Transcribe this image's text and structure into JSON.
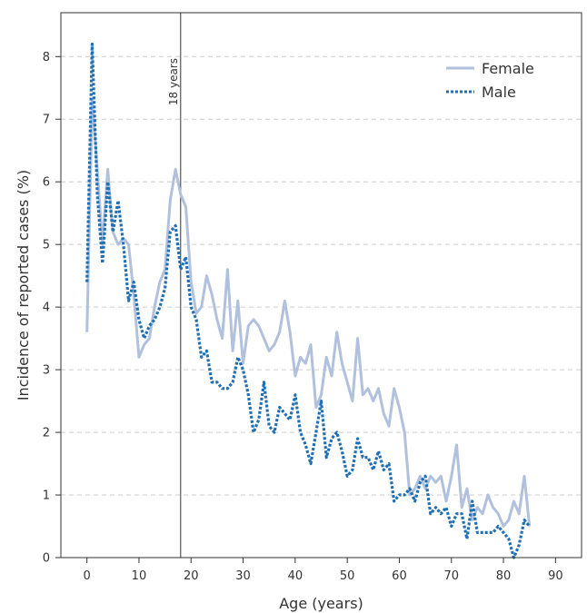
{
  "chart_data": {
    "type": "line",
    "xlabel": "Age (years)",
    "ylabel": "Incidence of reported cases (%)",
    "xlim": [
      -5,
      95
    ],
    "ylim": [
      0,
      8.7
    ],
    "xticks": [
      0,
      10,
      20,
      30,
      40,
      50,
      60,
      70,
      80,
      90
    ],
    "yticks": [
      0,
      1,
      2,
      3,
      4,
      5,
      6,
      7,
      8
    ],
    "grid": "horizontal dashed",
    "legend_position": "top-right",
    "annotations": [
      {
        "type": "vertical-line",
        "x": 18,
        "label": "18 years"
      }
    ],
    "x": [
      0,
      1,
      2,
      3,
      4,
      5,
      6,
      7,
      8,
      9,
      10,
      11,
      12,
      13,
      14,
      15,
      16,
      17,
      18,
      19,
      20,
      21,
      22,
      23,
      24,
      25,
      26,
      27,
      28,
      29,
      30,
      31,
      32,
      33,
      34,
      35,
      36,
      37,
      38,
      39,
      40,
      41,
      42,
      43,
      44,
      45,
      46,
      47,
      48,
      49,
      50,
      51,
      52,
      53,
      54,
      55,
      56,
      57,
      58,
      59,
      60,
      61,
      62,
      63,
      64,
      65,
      66,
      67,
      68,
      69,
      70,
      71,
      72,
      73,
      74,
      75,
      76,
      77,
      78,
      79,
      80,
      81,
      82,
      83,
      84,
      85
    ],
    "series": [
      {
        "name": "Female",
        "style": "solid",
        "values": [
          3.6,
          7.3,
          6.2,
          5.0,
          6.2,
          5.2,
          5.0,
          5.1,
          5.0,
          4.2,
          3.2,
          3.4,
          3.5,
          4.0,
          4.4,
          4.6,
          5.7,
          6.2,
          5.8,
          5.6,
          4.4,
          3.9,
          4.0,
          4.5,
          4.2,
          3.8,
          3.5,
          4.6,
          3.3,
          4.1,
          3.1,
          3.7,
          3.8,
          3.7,
          3.5,
          3.3,
          3.4,
          3.6,
          4.1,
          3.6,
          2.9,
          3.2,
          3.1,
          3.4,
          2.4,
          2.6,
          3.2,
          2.9,
          3.6,
          3.1,
          2.8,
          2.5,
          3.5,
          2.6,
          2.7,
          2.5,
          2.7,
          2.3,
          2.1,
          2.7,
          2.4,
          2.0,
          1.0,
          1.1,
          1.3,
          1.1,
          1.3,
          1.2,
          1.3,
          0.9,
          1.3,
          1.8,
          0.8,
          1.1,
          0.6,
          0.8,
          0.7,
          1.0,
          0.8,
          0.7,
          0.5,
          0.6,
          0.9,
          0.7,
          1.3,
          0.5
        ]
      },
      {
        "name": "Male",
        "style": "dotted",
        "values": [
          4.4,
          8.2,
          5.8,
          4.7,
          6.0,
          5.2,
          5.7,
          5.0,
          4.1,
          4.4,
          3.8,
          3.5,
          3.7,
          3.8,
          4.0,
          4.3,
          5.2,
          5.3,
          4.6,
          4.8,
          4.0,
          3.8,
          3.2,
          3.3,
          2.8,
          2.8,
          2.7,
          2.7,
          2.8,
          3.2,
          3.0,
          2.6,
          2.0,
          2.2,
          2.8,
          2.1,
          2.0,
          2.4,
          2.3,
          2.2,
          2.6,
          2.0,
          1.8,
          1.5,
          2.0,
          2.5,
          1.6,
          1.9,
          2.0,
          1.7,
          1.3,
          1.4,
          1.9,
          1.6,
          1.6,
          1.4,
          1.7,
          1.4,
          1.5,
          0.9,
          1.0,
          1.0,
          1.1,
          0.9,
          1.2,
          1.3,
          0.7,
          0.8,
          0.7,
          0.8,
          0.5,
          0.7,
          0.7,
          0.3,
          0.9,
          0.4,
          0.4,
          0.4,
          0.4,
          0.5,
          0.4,
          0.3,
          0.0,
          0.2,
          0.6,
          0.5
        ]
      }
    ]
  },
  "colors": {
    "female": "#b1c1dd",
    "male": "#1f6fb5",
    "axis": "#333333",
    "grid": "#cccccc",
    "marker_line": "#333333"
  }
}
